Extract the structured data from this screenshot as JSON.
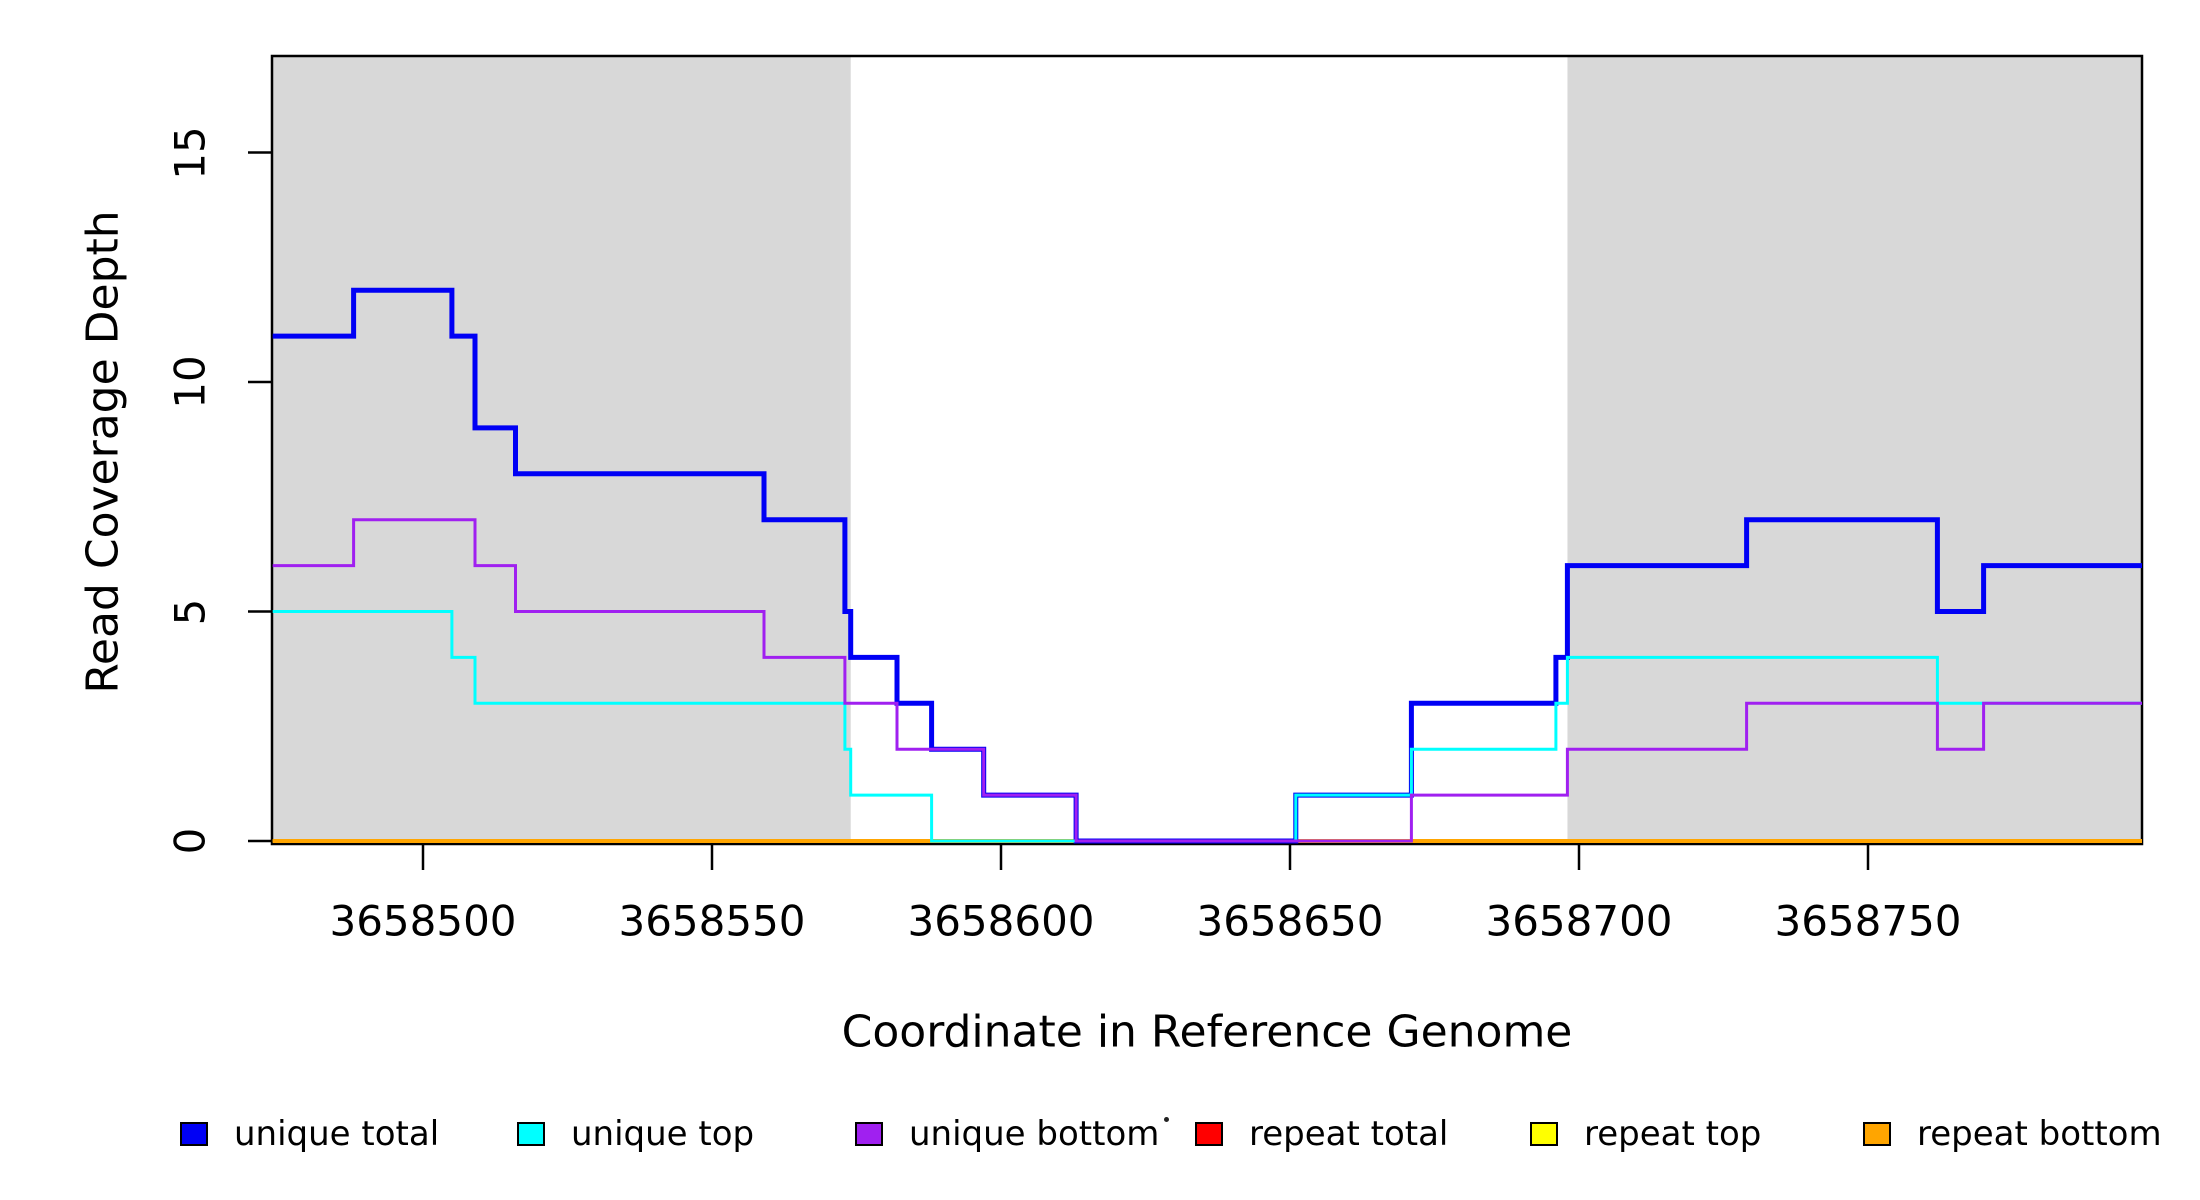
{
  "chart_data": {
    "type": "line",
    "subtype": "step-coverage",
    "title": "",
    "xlabel": "Coordinate in Reference Genome",
    "ylabel": "Read Coverage Depth",
    "xlim": [
      3658473.9,
      3658797.4
    ],
    "ylim": [
      0,
      17.15
    ],
    "grid": false,
    "x_ticks": [
      3658500,
      3658550,
      3658600,
      3658650,
      3658700,
      3658750
    ],
    "x_tick_labels": [
      "3658500",
      "3658550",
      "3658600",
      "3658650",
      "3658700",
      "3658750"
    ],
    "y_ticks": [
      0,
      5,
      10,
      15
    ],
    "y_tick_labels": [
      "0",
      "5",
      "10",
      "15"
    ],
    "shade_color": "#D8D8D8",
    "shaded_regions": [
      {
        "x0": 3658473.9,
        "x1": 3658574
      },
      {
        "x0": 3658698,
        "x1": 3658797.4
      }
    ],
    "legend_position": "bottom",
    "series": [
      {
        "name": "unique total",
        "color": "#0000F5",
        "line_width": 5,
        "steps": [
          [
            3658474,
            11
          ],
          [
            3658488,
            12
          ],
          [
            3658505,
            11
          ],
          [
            3658509,
            9
          ],
          [
            3658516,
            8
          ],
          [
            3658559,
            7
          ],
          [
            3658573,
            5
          ],
          [
            3658574,
            4
          ],
          [
            3658582,
            3
          ],
          [
            3658588,
            2
          ],
          [
            3658597,
            1
          ],
          [
            3658613,
            0
          ],
          [
            3658651,
            1
          ],
          [
            3658671,
            3
          ],
          [
            3658696,
            4
          ],
          [
            3658698,
            6
          ],
          [
            3658729,
            7
          ],
          [
            3658762,
            5
          ],
          [
            3658770,
            6
          ]
        ]
      },
      {
        "name": "unique top",
        "color": "#00FFFF",
        "line_width": 3,
        "steps": [
          [
            3658474,
            5
          ],
          [
            3658505,
            4
          ],
          [
            3658509,
            3
          ],
          [
            3658573,
            2
          ],
          [
            3658574,
            1
          ],
          [
            3658588,
            0
          ],
          [
            3658651,
            1
          ],
          [
            3658671,
            2
          ],
          [
            3658696,
            3
          ],
          [
            3658698,
            4
          ],
          [
            3658762,
            3
          ]
        ]
      },
      {
        "name": "unique bottom",
        "color": "#A020F0",
        "line_width": 3,
        "steps": [
          [
            3658474,
            6
          ],
          [
            3658488,
            7
          ],
          [
            3658509,
            6
          ],
          [
            3658516,
            5
          ],
          [
            3658559,
            4
          ],
          [
            3658573,
            3
          ],
          [
            3658582,
            2
          ],
          [
            3658597,
            1
          ],
          [
            3658613,
            0
          ],
          [
            3658671,
            1
          ],
          [
            3658698,
            2
          ],
          [
            3658729,
            3
          ],
          [
            3658762,
            2
          ],
          [
            3658770,
            3
          ]
        ]
      },
      {
        "name": "repeat total",
        "color": "#FF0000",
        "line_width": 2.5,
        "steps": [
          [
            3658474,
            0
          ]
        ]
      },
      {
        "name": "repeat top",
        "color": "#FFFF00",
        "line_width": 2.5,
        "steps": [
          [
            3658474,
            0
          ]
        ]
      },
      {
        "name": "repeat bottom",
        "color": "#FFA500",
        "line_width": 4,
        "steps": [
          [
            3658474,
            0
          ]
        ]
      }
    ]
  },
  "axes": {
    "x_title": "Coordinate in Reference Genome",
    "y_title": "Read Coverage Depth"
  },
  "legend": {
    "items": [
      {
        "label": "unique total",
        "color": "#0000F5"
      },
      {
        "label": "unique top",
        "color": "#00FFFF"
      },
      {
        "label": "unique bottom",
        "color": "#A020F0"
      },
      {
        "label": "repeat total",
        "color": "#FF0000"
      },
      {
        "label": "repeat top",
        "color": "#FFFF00"
      },
      {
        "label": "repeat bottom",
        "color": "#FFA500"
      }
    ]
  }
}
